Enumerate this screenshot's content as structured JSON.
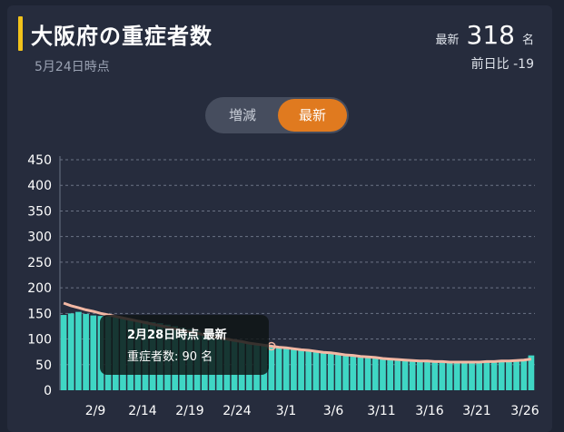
{
  "header": {
    "title": "大阪府の重症者数",
    "as_of": "5月24日時点",
    "latest_label": "最新",
    "latest_value": "318",
    "latest_unit": "名",
    "day_over_day": "前日比 -19"
  },
  "toggle": {
    "options": [
      "増減",
      "最新"
    ],
    "selected": "最新"
  },
  "tooltip": {
    "title": "2月28日時点 最新",
    "series_label": "重症者数",
    "value": "90",
    "unit": "名"
  },
  "colors": {
    "accent": "#f1c21b",
    "toggle_active": "#e07a1f",
    "bar": "#3fd6c4",
    "trend_line": "#f3b8a4"
  },
  "chart_data": {
    "type": "bar",
    "ylim": [
      0,
      450
    ],
    "yticks": [
      "0",
      "50",
      "100",
      "150",
      "200",
      "250",
      "300",
      "350",
      "400",
      "450"
    ],
    "xticks": [
      "2/9",
      "2/14",
      "2/19",
      "2/24",
      "3/1",
      "3/6",
      "3/11",
      "3/16",
      "3/21",
      "3/26"
    ],
    "values": [
      147,
      150,
      153,
      149,
      146,
      145,
      144,
      142,
      140,
      139,
      137,
      135,
      133,
      131,
      128,
      125,
      122,
      119,
      116,
      112,
      108,
      105,
      102,
      99,
      96,
      93,
      90,
      88,
      86,
      84,
      82,
      80,
      78,
      77,
      75,
      74,
      72,
      70,
      68,
      66,
      64,
      63,
      62,
      61,
      60,
      59,
      58,
      57,
      56,
      55,
      55,
      54,
      54,
      53,
      53,
      53,
      54,
      55,
      55,
      56,
      57,
      58,
      60,
      68
    ],
    "trend": [
      170,
      165,
      161,
      157,
      154,
      150,
      147,
      144,
      141,
      138,
      135,
      132,
      129,
      126,
      123,
      120,
      117,
      114,
      111,
      108,
      105,
      102,
      100,
      97,
      95,
      92,
      90,
      88,
      86,
      84,
      83,
      81,
      79,
      78,
      76,
      74,
      73,
      71,
      69,
      68,
      66,
      65,
      64,
      62,
      61,
      60,
      59,
      58,
      57,
      57,
      56,
      56,
      55,
      55,
      55,
      55,
      55,
      56,
      56,
      57,
      57,
      58,
      59,
      61
    ],
    "highlight_index": 28
  }
}
